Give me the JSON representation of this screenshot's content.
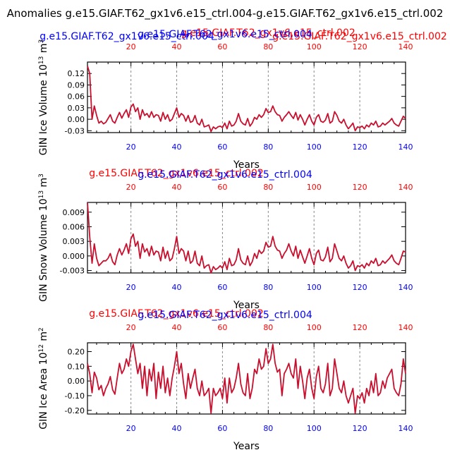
{
  "figure_title": "Anomalies g.e15.GIAF.T62_gx1v6.e15_ctrl.004-g.e15.GIAF.T62_gx1v6.e15_ctrl.002",
  "colors": {
    "case_a": "#0000ff",
    "case_b": "#ff0000",
    "line": "#c8102e",
    "axis": "#000000",
    "grid": "#888888"
  },
  "chart_data": [
    {
      "type": "line",
      "case_a_label": "g.e15.GIAF.T62_gx1v6.e15_ctrl.004",
      "case_b_label": "g.e15.GIAF.T62_gx1v6.e15_ctrl.002",
      "ylabel_main": "GIN Ice Volume 10",
      "ylabel_exp": "13",
      "ylabel_unit": "m",
      "ylabel_unit_exp": "3",
      "xlabel": "Years",
      "xlim": [
        1,
        140
      ],
      "ylim": [
        -0.035,
        0.15
      ],
      "yticks": [
        -0.03,
        0.0,
        0.03,
        0.06,
        0.09,
        0.12
      ],
      "ytick_labels": [
        "-0.03",
        "0.00",
        "0.03",
        "0.06",
        "0.09",
        "0.12"
      ],
      "xticks": [
        20,
        40,
        60,
        80,
        100,
        120,
        140
      ],
      "xtick_labels": [
        "20",
        "40",
        "60",
        "80",
        "100",
        "120",
        "140"
      ],
      "grid_x": [
        20,
        40,
        60,
        80,
        100,
        120
      ],
      "x_start": 1,
      "values": [
        0.14,
        0.12,
        0.0,
        0.035,
        0.01,
        -0.01,
        -0.005,
        -0.012,
        -0.008,
        0.002,
        0.012,
        -0.005,
        -0.01,
        0.005,
        0.018,
        0.003,
        0.015,
        0.025,
        0.005,
        0.032,
        0.04,
        0.02,
        0.03,
        0.0,
        0.025,
        0.01,
        0.015,
        0.005,
        0.02,
        0.005,
        0.012,
        0.01,
        -0.005,
        0.018,
        0.0,
        0.012,
        -0.005,
        0.0,
        0.015,
        0.03,
        0.005,
        0.015,
        0.01,
        -0.005,
        0.01,
        -0.008,
        -0.005,
        0.01,
        -0.01,
        -0.015,
        0.0,
        -0.02,
        -0.018,
        -0.015,
        -0.032,
        -0.02,
        -0.025,
        -0.02,
        -0.018,
        -0.022,
        -0.01,
        -0.025,
        -0.005,
        -0.018,
        -0.015,
        -0.005,
        0.015,
        -0.005,
        -0.012,
        -0.015,
        0.002,
        -0.018,
        -0.01,
        0.005,
        0.0,
        0.012,
        0.005,
        0.012,
        0.028,
        0.018,
        0.02,
        0.035,
        0.02,
        0.012,
        0.01,
        -0.005,
        0.005,
        0.012,
        0.02,
        0.01,
        0.002,
        0.018,
        -0.002,
        0.012,
        0.0,
        -0.015,
        0.0,
        0.012,
        -0.005,
        -0.015,
        0.005,
        0.012,
        -0.005,
        -0.008,
        -0.002,
        0.015,
        -0.01,
        -0.005,
        0.02,
        0.01,
        -0.005,
        -0.01,
        0.0,
        -0.015,
        -0.025,
        -0.018,
        -0.01,
        -0.03,
        -0.02,
        -0.022,
        -0.018,
        -0.025,
        -0.015,
        -0.02,
        -0.01,
        -0.015,
        -0.005,
        -0.02,
        -0.018,
        -0.01,
        -0.015,
        -0.01,
        -0.005,
        0.002,
        -0.01,
        -0.015,
        -0.018,
        -0.005,
        0.008,
        0.002
      ]
    },
    {
      "type": "line",
      "case_a_label": "g.e15.GIAF.T62_gx1v6.e15_ctrl.004",
      "case_b_label": "g.e15.GIAF.T62_gx1v6.e15_ctrl.002",
      "ylabel_main": "GIN Snow Volume 10",
      "ylabel_exp": "13",
      "ylabel_unit": "m",
      "ylabel_unit_exp": "3",
      "xlabel": "Years",
      "xlim": [
        1,
        140
      ],
      "ylim": [
        -0.0035,
        0.011
      ],
      "yticks": [
        -0.003,
        0.0,
        0.003,
        0.006,
        0.009
      ],
      "ytick_labels": [
        "-0.003",
        "0.000",
        "0.003",
        "0.006",
        "0.009"
      ],
      "xticks": [
        20,
        40,
        60,
        80,
        100,
        120,
        140
      ],
      "xtick_labels": [
        "20",
        "40",
        "60",
        "80",
        "100",
        "120",
        "140"
      ],
      "grid_x": [
        20,
        40,
        60,
        80,
        100,
        120
      ],
      "x_start": 1,
      "values": [
        0.011,
        0.004,
        -0.0015,
        0.0025,
        -0.0005,
        -0.002,
        -0.0015,
        -0.001,
        -0.001,
        -0.0005,
        0.0005,
        -0.0012,
        -0.0018,
        0.0002,
        0.0015,
        0.0002,
        0.0012,
        0.0025,
        0.0005,
        0.0035,
        0.0045,
        0.002,
        0.003,
        -0.0005,
        0.0025,
        0.0008,
        0.0015,
        0.0,
        0.002,
        0.0002,
        0.001,
        0.0008,
        -0.001,
        0.0018,
        -0.0005,
        0.001,
        -0.001,
        -0.0005,
        0.0015,
        0.004,
        0.0005,
        0.0015,
        0.001,
        -0.001,
        0.001,
        -0.0015,
        -0.001,
        0.001,
        -0.0015,
        -0.002,
        0.0,
        -0.0025,
        -0.002,
        -0.0018,
        -0.0035,
        -0.0022,
        -0.0028,
        -0.0025,
        -0.002,
        -0.0025,
        -0.0012,
        -0.0028,
        -0.0005,
        -0.002,
        -0.0018,
        -0.0008,
        0.0015,
        -0.0008,
        -0.0015,
        -0.0018,
        0.0,
        -0.002,
        -0.0012,
        0.0005,
        -0.0005,
        0.0012,
        0.0005,
        0.001,
        0.0028,
        0.0018,
        0.002,
        0.004,
        0.002,
        0.0012,
        0.001,
        -0.0005,
        0.0005,
        0.0012,
        0.0025,
        0.001,
        0.0,
        0.002,
        -0.0005,
        0.0012,
        -0.0002,
        -0.0015,
        0.0,
        0.0015,
        -0.0005,
        -0.0018,
        0.0005,
        0.0012,
        -0.0008,
        -0.001,
        -0.0002,
        0.0018,
        -0.0012,
        -0.0005,
        0.0025,
        0.001,
        -0.0005,
        -0.001,
        0.0,
        -0.0015,
        -0.0025,
        -0.002,
        -0.001,
        -0.003,
        -0.002,
        -0.0022,
        -0.0018,
        -0.0025,
        -0.0015,
        -0.002,
        -0.001,
        -0.0015,
        -0.0005,
        -0.002,
        -0.0018,
        -0.001,
        -0.0015,
        -0.001,
        -0.0005,
        0.0002,
        -0.001,
        -0.0015,
        -0.0018,
        -0.0005,
        0.001,
        0.0008
      ]
    },
    {
      "type": "line",
      "case_a_label": "g.e15.GIAF.T62_gx1v6.e15_ctrl.004",
      "case_b_label": "g.e15.GIAF.T62_gx1v6.e15_ctrl.002",
      "ylabel_main": "GIN Ice Area 10",
      "ylabel_exp": "12",
      "ylabel_unit": "m",
      "ylabel_unit_exp": "2",
      "xlabel": "Years",
      "xlim": [
        1,
        140
      ],
      "ylim": [
        -0.225,
        0.26
      ],
      "yticks": [
        -0.2,
        -0.1,
        0.0,
        0.1,
        0.2
      ],
      "ytick_labels": [
        "-0.20",
        "-0.10",
        "0.00",
        "0.10",
        "0.20"
      ],
      "xticks": [
        20,
        40,
        60,
        80,
        100,
        120,
        140
      ],
      "xtick_labels": [
        "20",
        "40",
        "60",
        "80",
        "100",
        "120",
        "140"
      ],
      "grid_x": [
        20,
        40,
        60,
        80,
        100,
        120
      ],
      "x_start": 1,
      "values": [
        0.12,
        0.05,
        -0.08,
        0.06,
        0.02,
        -0.06,
        -0.03,
        -0.1,
        -0.05,
        -0.02,
        0.03,
        -0.06,
        -0.09,
        0.02,
        0.12,
        0.05,
        0.08,
        0.15,
        0.1,
        0.2,
        0.25,
        0.15,
        0.05,
        0.12,
        -0.05,
        0.1,
        -0.1,
        0.08,
        0.0,
        0.12,
        -0.12,
        0.06,
        -0.05,
        0.1,
        -0.08,
        0.02,
        -0.1,
        0.02,
        0.1,
        0.2,
        0.05,
        0.12,
        -0.02,
        -0.12,
        0.05,
        -0.05,
        0.02,
        0.08,
        -0.05,
        -0.1,
        0.0,
        -0.1,
        -0.08,
        -0.05,
        -0.22,
        -0.05,
        -0.1,
        -0.08,
        -0.05,
        -0.12,
        0.02,
        -0.15,
        0.02,
        -0.08,
        -0.05,
        0.02,
        0.12,
        -0.02,
        -0.08,
        -0.1,
        0.05,
        -0.12,
        -0.05,
        0.08,
        0.05,
        0.15,
        0.08,
        0.1,
        0.22,
        0.12,
        0.15,
        0.25,
        0.12,
        0.06,
        0.08,
        -0.1,
        0.05,
        0.08,
        0.12,
        0.05,
        0.02,
        0.15,
        -0.05,
        0.1,
        0.0,
        -0.12,
        0.02,
        0.08,
        -0.05,
        -0.12,
        0.03,
        0.1,
        -0.05,
        -0.08,
        -0.02,
        0.12,
        -0.1,
        -0.05,
        0.15,
        0.05,
        -0.05,
        -0.08,
        0.0,
        -0.1,
        -0.15,
        -0.1,
        -0.05,
        -0.22,
        -0.1,
        -0.12,
        -0.08,
        -0.15,
        -0.05,
        -0.1,
        0.0,
        -0.08,
        0.05,
        -0.1,
        -0.08,
        0.0,
        -0.05,
        0.02,
        0.05,
        0.08,
        -0.05,
        -0.08,
        -0.1,
        -0.02,
        0.15,
        0.05
      ]
    }
  ]
}
